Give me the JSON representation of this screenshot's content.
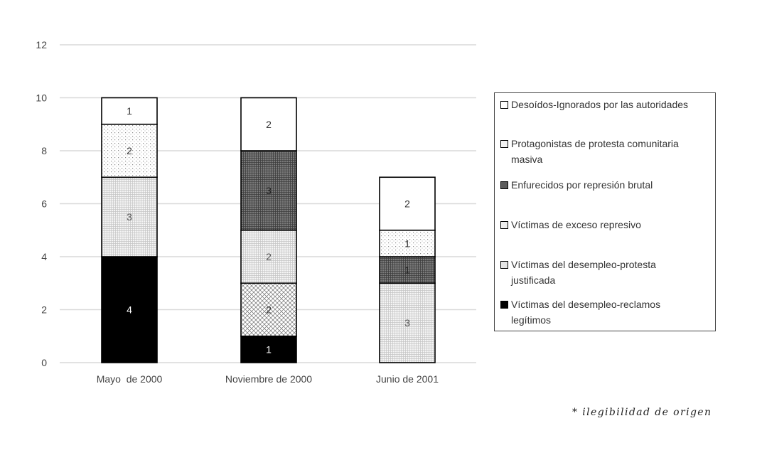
{
  "chart_data": {
    "type": "bar",
    "stacked": true,
    "categories": [
      "Mayo  de 2000",
      "Noviembre de 2000",
      "Junio de 2001"
    ],
    "series": [
      {
        "name": "Víctimas del desempleo-reclamos legítimos",
        "values": [
          4,
          1,
          0
        ],
        "fill": "#000000",
        "pattern": "solid",
        "label_color": "#ffffff"
      },
      {
        "name": "Víctimas del desempleo-protesta justificada",
        "values": [
          0,
          2,
          0
        ],
        "fill": "#ffffff",
        "pattern": "crosshatch",
        "label_color": "#333333"
      },
      {
        "name": "Víctimas de exceso represivo",
        "values": [
          3,
          2,
          3
        ],
        "fill": "#ffffff",
        "pattern": "grid",
        "label_color": "#555555"
      },
      {
        "name": "Enfurecidos por represión brutal",
        "values": [
          0,
          3,
          1
        ],
        "fill": "#6a6a6a",
        "pattern": "darkgrid",
        "label_color": "#222222"
      },
      {
        "name": "Protagonistas de protesta comunitaria masiva",
        "values": [
          2,
          0,
          1
        ],
        "fill": "#ffffff",
        "pattern": "dots",
        "label_color": "#333333"
      },
      {
        "name": "Desoídos-Ignorados por las autoridades",
        "values": [
          1,
          2,
          2
        ],
        "fill": "#ffffff",
        "pattern": "none",
        "label_color": "#333333"
      }
    ],
    "data_labels": true,
    "y_ticks": [
      "0",
      "2",
      "4",
      "6",
      "8",
      "10",
      "12"
    ],
    "ylim": [
      0,
      12
    ],
    "grid": true,
    "legend_position": "right",
    "title": "",
    "xlabel": "",
    "ylabel": ""
  },
  "legend": {
    "items": [
      {
        "label_lines": [
          "Desoídos-Ignorados por las autoridades"
        ],
        "pattern": "none"
      },
      {
        "label_lines": [
          "Protagonistas de protesta comunitaria",
          "masiva"
        ],
        "pattern": "dots"
      },
      {
        "label_lines": [
          "Enfurecidos por represión brutal"
        ],
        "pattern": "darkgrid"
      },
      {
        "label_lines": [
          "Víctimas de exceso represivo"
        ],
        "pattern": "grid"
      },
      {
        "label_lines": [
          "Víctimas del desempleo-protesta",
          "justificada"
        ],
        "pattern": "crosshatch"
      },
      {
        "label_lines": [
          "Víctimas del desempleo-reclamos",
          "legítimos"
        ],
        "pattern": "solid"
      }
    ]
  },
  "note": "* ilegibilidad de origen"
}
